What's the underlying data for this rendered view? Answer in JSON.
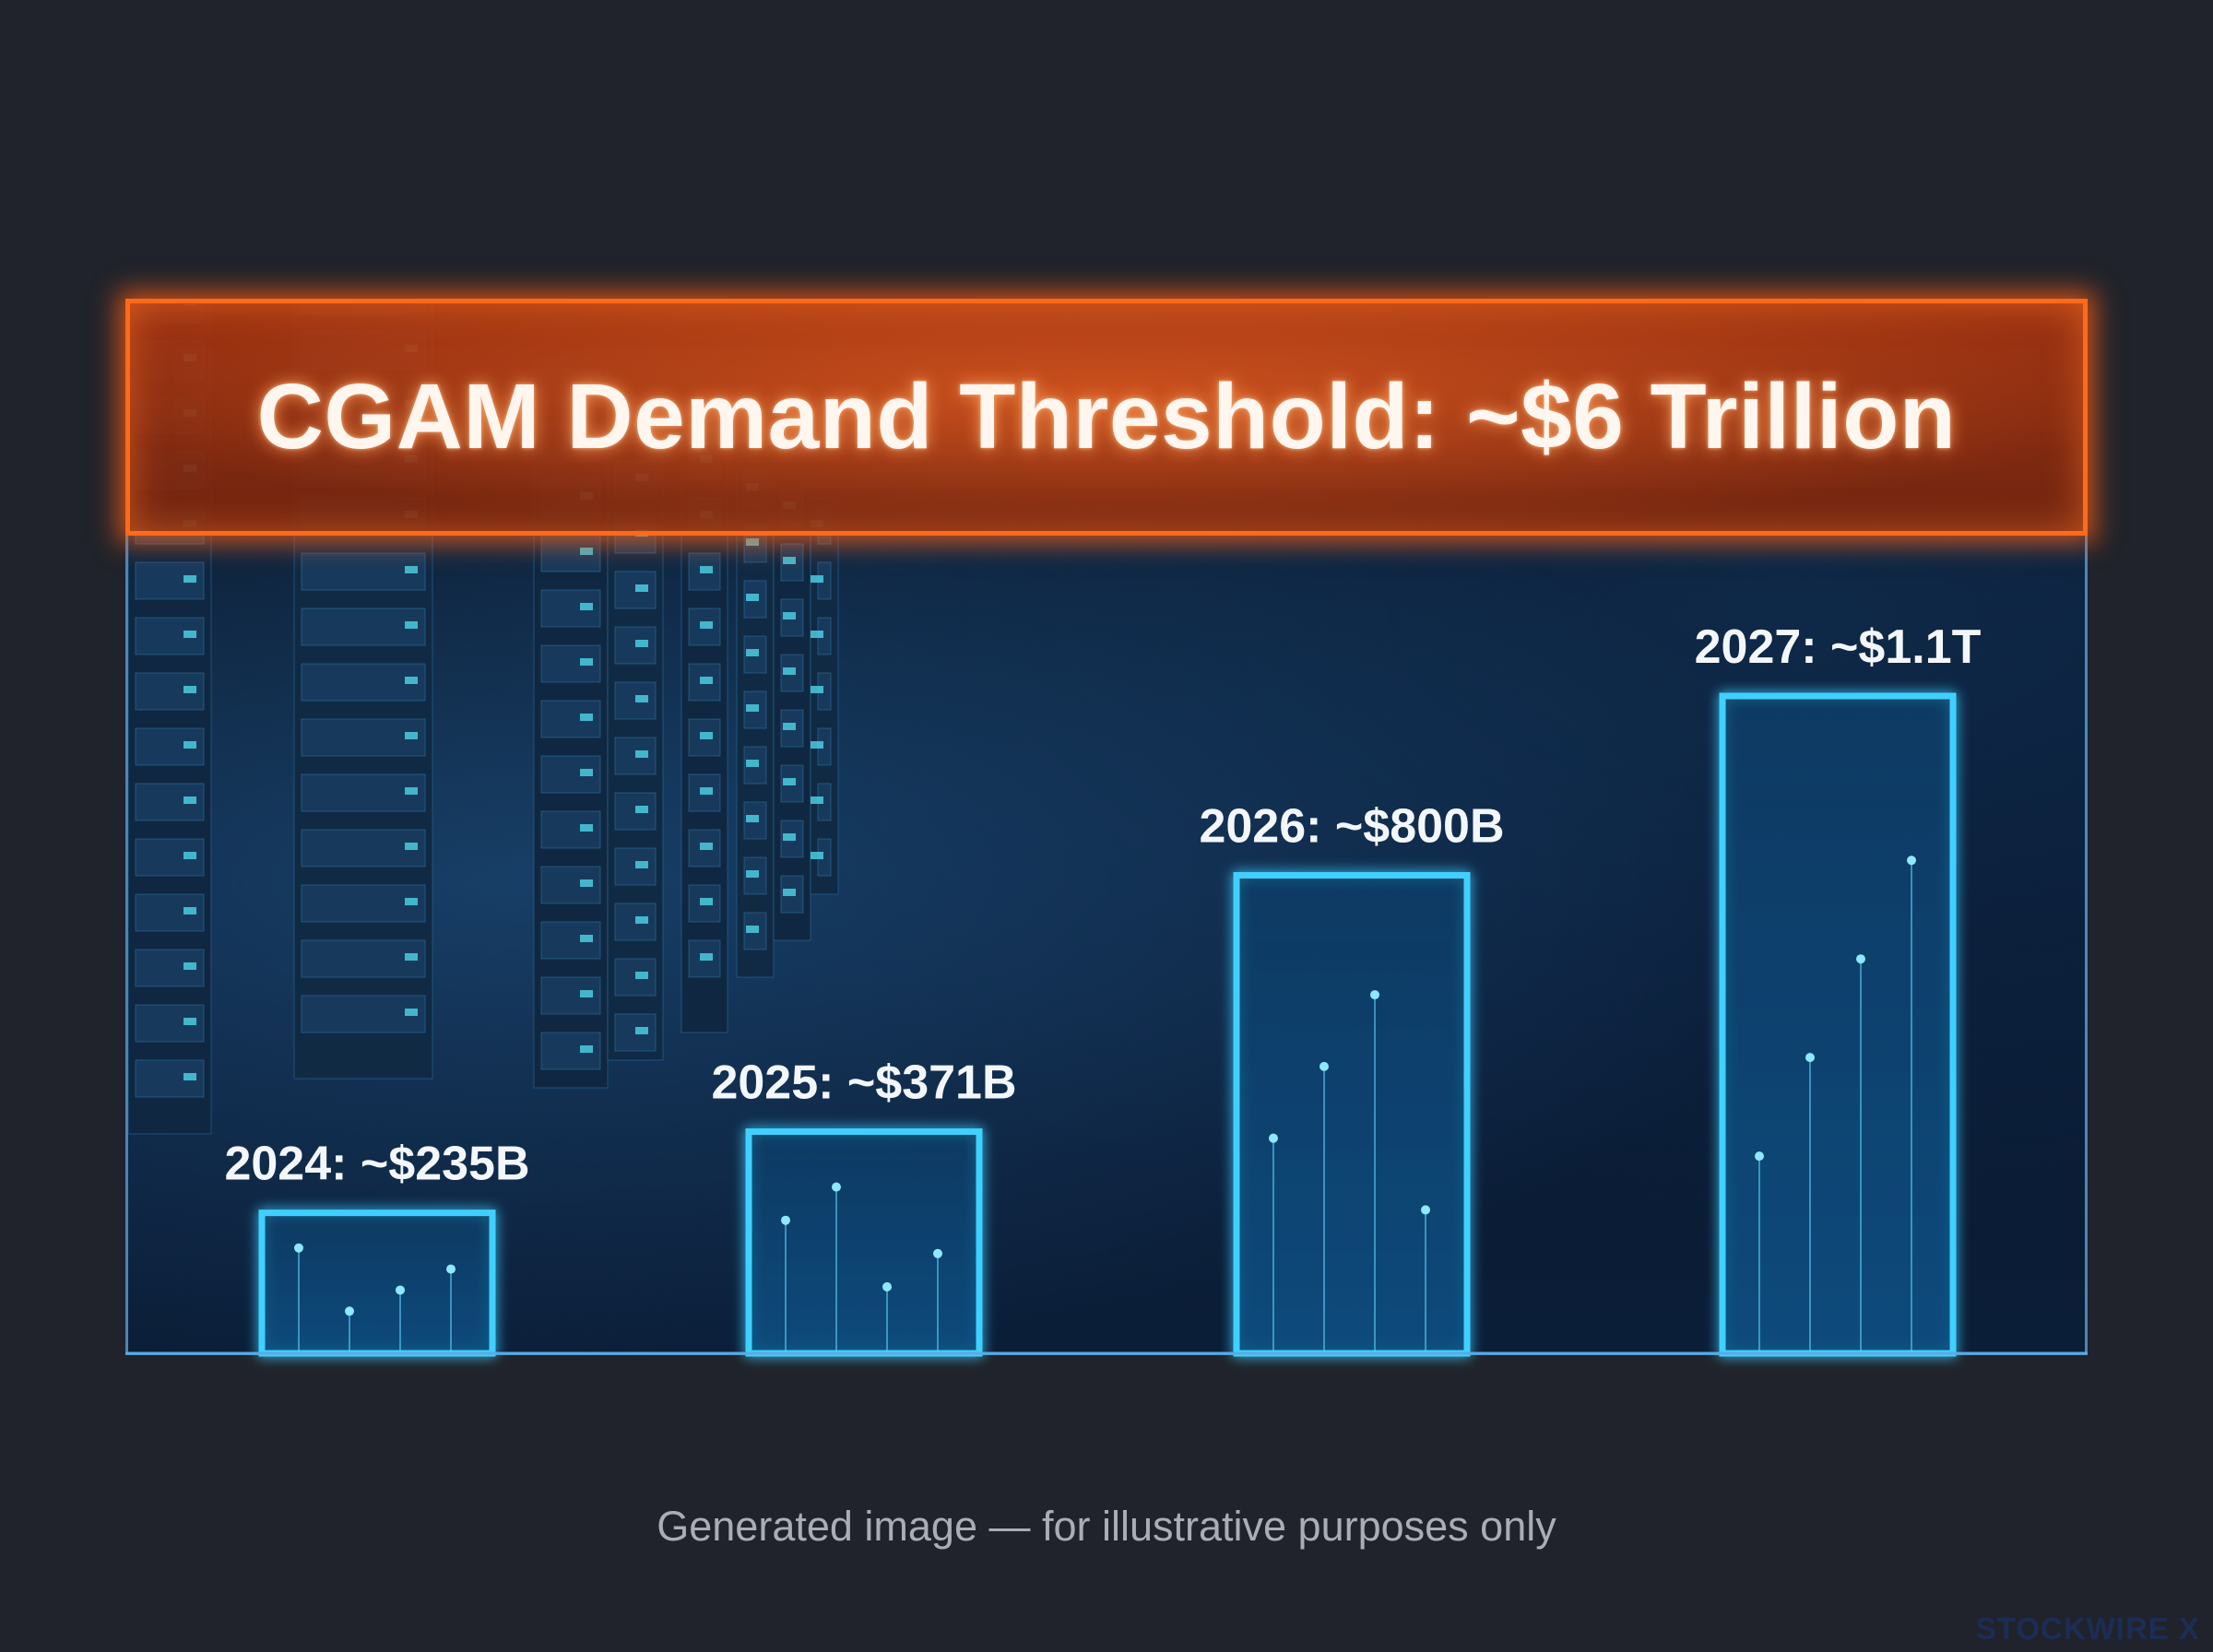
{
  "title": "CGAM Demand Threshold: ~$6 Trillion",
  "caption": "Generated image — for illustrative purposes only",
  "brand": "STOCKWIRE X",
  "colors": {
    "banner_border": "#ff6a1a",
    "bar_stroke": "#3fd0ff",
    "background": "#20232b"
  },
  "chart_data": {
    "type": "bar",
    "title": "CGAM Demand Threshold: ~$6 Trillion",
    "categories": [
      "2024",
      "2025",
      "2026",
      "2027"
    ],
    "values": [
      235,
      371,
      800,
      1100
    ],
    "unit": "$B",
    "data_labels": [
      "2024: ~$235B",
      "2025: ~$371B",
      "2026: ~$800B",
      "2027: ~$1.1T"
    ],
    "xlabel": "",
    "ylabel": "",
    "ylim": [
      0,
      1100
    ],
    "grid": false,
    "legend": "none"
  }
}
